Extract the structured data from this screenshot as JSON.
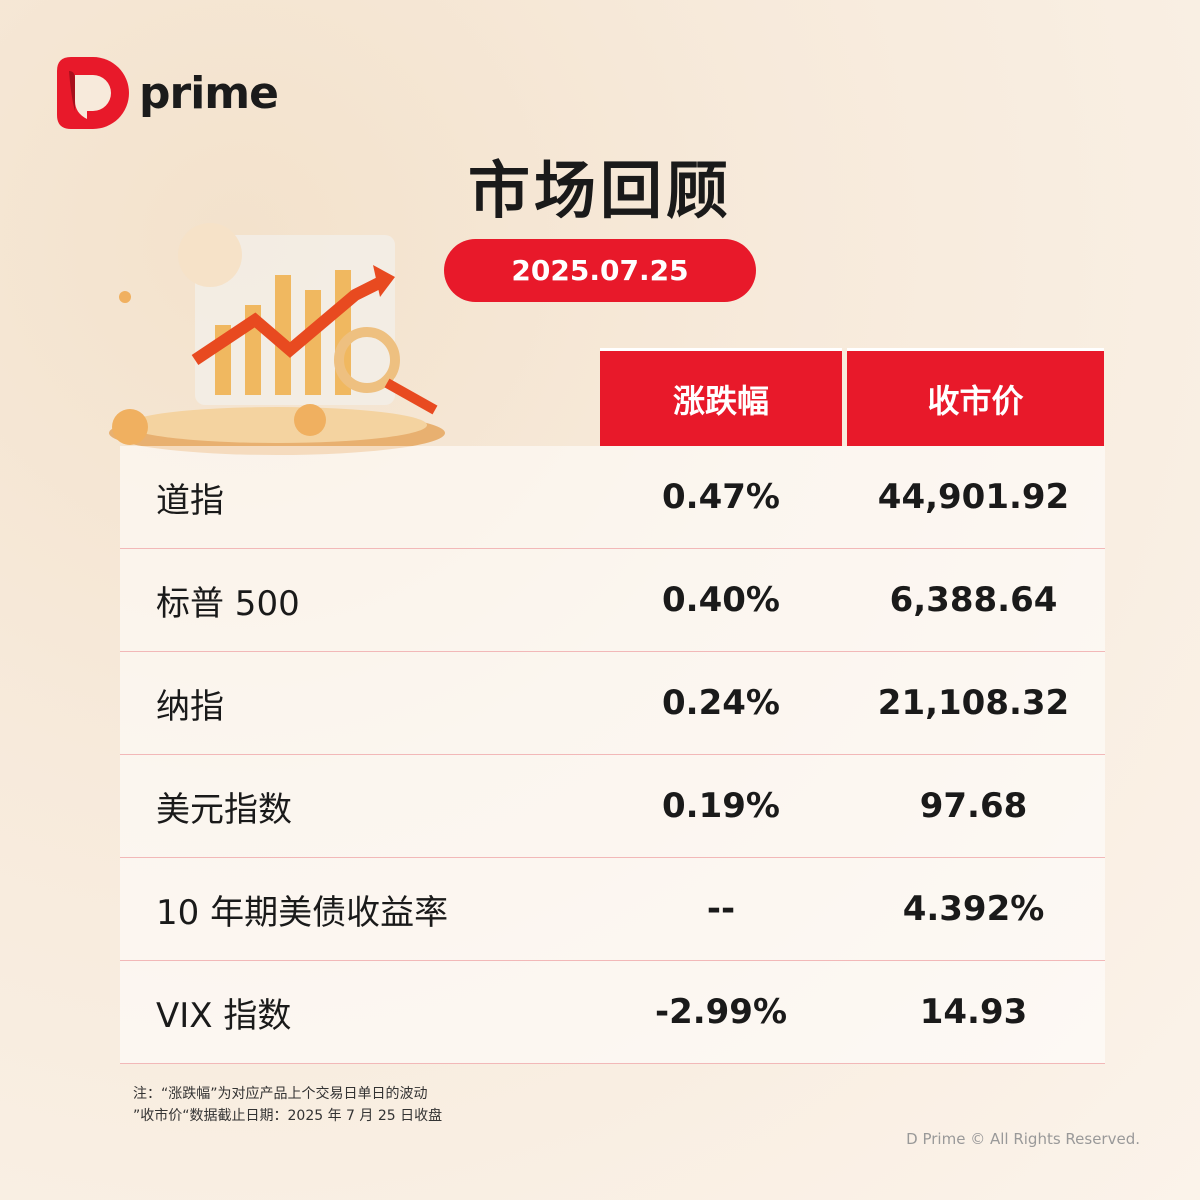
{
  "brand": {
    "name": "prime",
    "accent": "#e8192a"
  },
  "title": "市场回顾",
  "date": "2025.07.25",
  "table": {
    "headers": [
      "涨跌幅",
      "收市价"
    ],
    "rows": [
      {
        "name": "道指",
        "change": "0.47%",
        "close": "44,901.92"
      },
      {
        "name": "标普 500",
        "change": "0.40%",
        "close": "6,388.64"
      },
      {
        "name": "纳指",
        "change": "0.24%",
        "close": "21,108.32"
      },
      {
        "name": "美元指数",
        "change": "0.19%",
        "close": "97.68"
      },
      {
        "name": "10 年期美债收益率",
        "change": "--",
        "close": "4.392%"
      },
      {
        "name": "VIX 指数",
        "change": "-2.99%",
        "close": "14.93"
      }
    ]
  },
  "notes": [
    "注：“涨跌幅”为对应产品上个交易日单日的波动",
    "”收市价“数据截止日期：2025 年 7 月 25 日收盘"
  ],
  "copyright": "D Prime © All Rights Reserved."
}
